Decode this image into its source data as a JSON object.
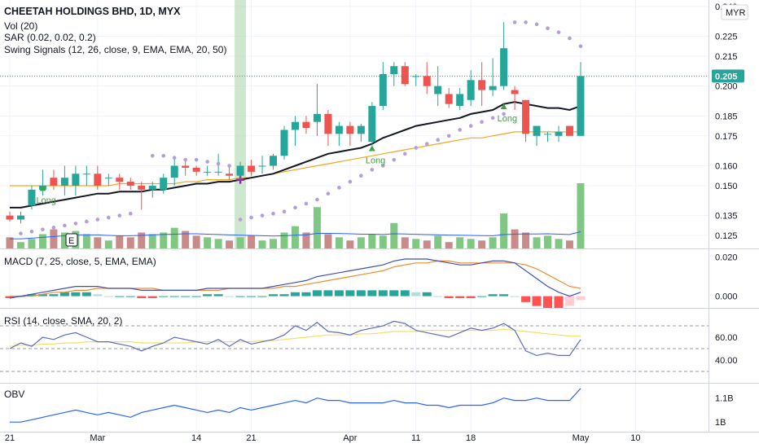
{
  "header": {
    "title": "CHEETAH HOLDINGS BHD, 1D, MYX",
    "currency": "MYR",
    "indicators": [
      "Vol (20)",
      "SAR (0.02, 0.02, 0.2)",
      "Swing Signals (12, 26, close, 9, EMA, EMA, 20, 50)"
    ]
  },
  "colors": {
    "up": "#26a69a",
    "down": "#ef5350",
    "vol_up": "#81c784",
    "vol_down": "#c98a8a",
    "ema_fast": "#131722",
    "ema_slow": "#f5a623",
    "sar": "#b39ddb",
    "signal": "#43a047",
    "macd_line": "#3f51b5",
    "macd_signal": "#ef8c2a",
    "rsi": "#5c6bc0",
    "rsi_ma": "#f2e06a",
    "obv": "#2962ff",
    "last_price_bg": "#26a69a"
  },
  "chart_data": {
    "type": "candlestick",
    "title": "CHEETAH HOLDINGS BHD, 1D, MYX",
    "price_axis_ticks": [
      "0.240",
      "0.225",
      "0.215",
      "0.205",
      "0.200",
      "0.185",
      "0.175",
      "0.160",
      "0.150",
      "0.135",
      "0.125"
    ],
    "price_axis_values": [
      0.24,
      0.225,
      0.215,
      0.205,
      0.2,
      0.185,
      0.175,
      0.16,
      0.15,
      0.135,
      0.125
    ],
    "last_price": "0.205",
    "x_axis_ticks": [
      "21",
      "Mar",
      "14",
      "21",
      "Apr",
      "11",
      "18",
      "May",
      "10"
    ],
    "x_axis_tick_index": [
      0,
      8,
      17,
      22,
      31,
      37,
      42,
      52,
      57
    ],
    "candles": [
      {
        "o": 0.135,
        "h": 0.137,
        "l": 0.132,
        "c": 0.133
      },
      {
        "o": 0.133,
        "h": 0.137,
        "l": 0.131,
        "c": 0.135
      },
      {
        "o": 0.14,
        "h": 0.15,
        "l": 0.138,
        "c": 0.148
      },
      {
        "o": 0.148,
        "h": 0.158,
        "l": 0.145,
        "c": 0.15
      },
      {
        "o": 0.154,
        "h": 0.158,
        "l": 0.148,
        "c": 0.15
      },
      {
        "o": 0.15,
        "h": 0.16,
        "l": 0.145,
        "c": 0.154
      },
      {
        "o": 0.15,
        "h": 0.16,
        "l": 0.145,
        "c": 0.156
      },
      {
        "o": 0.156,
        "h": 0.16,
        "l": 0.15,
        "c": 0.156
      },
      {
        "o": 0.156,
        "h": 0.16,
        "l": 0.148,
        "c": 0.15
      },
      {
        "o": 0.154,
        "h": 0.156,
        "l": 0.15,
        "c": 0.154
      },
      {
        "o": 0.154,
        "h": 0.156,
        "l": 0.148,
        "c": 0.152
      },
      {
        "o": 0.152,
        "h": 0.154,
        "l": 0.148,
        "c": 0.15
      },
      {
        "o": 0.15,
        "h": 0.152,
        "l": 0.138,
        "c": 0.148
      },
      {
        "o": 0.148,
        "h": 0.152,
        "l": 0.144,
        "c": 0.15
      },
      {
        "o": 0.148,
        "h": 0.156,
        "l": 0.146,
        "c": 0.154
      },
      {
        "o": 0.154,
        "h": 0.164,
        "l": 0.15,
        "c": 0.16
      },
      {
        "o": 0.16,
        "h": 0.163,
        "l": 0.155,
        "c": 0.159
      },
      {
        "o": 0.159,
        "h": 0.16,
        "l": 0.155,
        "c": 0.157
      },
      {
        "o": 0.157,
        "h": 0.16,
        "l": 0.155,
        "c": 0.157
      },
      {
        "o": 0.157,
        "h": 0.166,
        "l": 0.155,
        "c": 0.157
      },
      {
        "o": 0.156,
        "h": 0.16,
        "l": 0.153,
        "c": 0.155
      },
      {
        "o": 0.155,
        "h": 0.162,
        "l": 0.153,
        "c": 0.16
      },
      {
        "o": 0.16,
        "h": 0.163,
        "l": 0.155,
        "c": 0.157
      },
      {
        "o": 0.16,
        "h": 0.165,
        "l": 0.156,
        "c": 0.16
      },
      {
        "o": 0.16,
        "h": 0.166,
        "l": 0.158,
        "c": 0.165
      },
      {
        "o": 0.165,
        "h": 0.18,
        "l": 0.163,
        "c": 0.178
      },
      {
        "o": 0.178,
        "h": 0.185,
        "l": 0.17,
        "c": 0.182
      },
      {
        "o": 0.182,
        "h": 0.185,
        "l": 0.176,
        "c": 0.179
      },
      {
        "o": 0.182,
        "h": 0.201,
        "l": 0.175,
        "c": 0.186
      },
      {
        "o": 0.186,
        "h": 0.188,
        "l": 0.17,
        "c": 0.176
      },
      {
        "o": 0.176,
        "h": 0.182,
        "l": 0.17,
        "c": 0.18
      },
      {
        "o": 0.18,
        "h": 0.182,
        "l": 0.17,
        "c": 0.176
      },
      {
        "o": 0.176,
        "h": 0.181,
        "l": 0.172,
        "c": 0.18
      },
      {
        "o": 0.172,
        "h": 0.192,
        "l": 0.17,
        "c": 0.19
      },
      {
        "o": 0.19,
        "h": 0.212,
        "l": 0.188,
        "c": 0.206
      },
      {
        "o": 0.206,
        "h": 0.212,
        "l": 0.2,
        "c": 0.21
      },
      {
        "o": 0.21,
        "h": 0.212,
        "l": 0.2,
        "c": 0.201
      },
      {
        "o": 0.205,
        "h": 0.206,
        "l": 0.2,
        "c": 0.205
      },
      {
        "o": 0.205,
        "h": 0.212,
        "l": 0.196,
        "c": 0.2
      },
      {
        "o": 0.196,
        "h": 0.21,
        "l": 0.19,
        "c": 0.2
      },
      {
        "o": 0.196,
        "h": 0.199,
        "l": 0.189,
        "c": 0.191
      },
      {
        "o": 0.19,
        "h": 0.199,
        "l": 0.188,
        "c": 0.196
      },
      {
        "o": 0.193,
        "h": 0.208,
        "l": 0.19,
        "c": 0.203
      },
      {
        "o": 0.203,
        "h": 0.212,
        "l": 0.19,
        "c": 0.198
      },
      {
        "o": 0.198,
        "h": 0.214,
        "l": 0.195,
        "c": 0.2
      },
      {
        "o": 0.2,
        "h": 0.232,
        "l": 0.198,
        "c": 0.219
      },
      {
        "o": 0.198,
        "h": 0.2,
        "l": 0.188,
        "c": 0.196
      },
      {
        "o": 0.193,
        "h": 0.193,
        "l": 0.172,
        "c": 0.176
      },
      {
        "o": 0.175,
        "h": 0.18,
        "l": 0.17,
        "c": 0.18
      },
      {
        "o": 0.176,
        "h": 0.177,
        "l": 0.172,
        "c": 0.176
      },
      {
        "o": 0.175,
        "h": 0.18,
        "l": 0.172,
        "c": 0.177
      },
      {
        "o": 0.18,
        "h": 0.18,
        "l": 0.175,
        "c": 0.175
      },
      {
        "o": 0.175,
        "h": 0.212,
        "l": 0.175,
        "c": 0.205
      }
    ],
    "volume": [
      7,
      4,
      6,
      9,
      12,
      10,
      11,
      9,
      7,
      5,
      8,
      7,
      10,
      9,
      10,
      13,
      11,
      8,
      7,
      6,
      5,
      7,
      8,
      5,
      6,
      10,
      14,
      10,
      26,
      9,
      7,
      5,
      7,
      9,
      8,
      16,
      7,
      6,
      5,
      8,
      4,
      7,
      6,
      5,
      7,
      22,
      12,
      10,
      7,
      8,
      6,
      5,
      41
    ],
    "volume_ma": [
      6,
      6,
      6.5,
      7,
      7.5,
      8,
      8.5,
      8.5,
      8.5,
      8.2,
      8,
      8,
      8.2,
      8.5,
      8.8,
      9,
      9.2,
      9.2,
      9,
      8.8,
      8.5,
      8.3,
      8.2,
      8,
      7.8,
      8,
      8.3,
      8.5,
      9.5,
      9.5,
      9.4,
      9.2,
      9,
      9,
      8.8,
      9.2,
      9.1,
      8.9,
      8.7,
      8.6,
      8.4,
      8.3,
      8.2,
      8.1,
      8,
      8.7,
      9,
      9.1,
      9.1,
      9.2,
      9,
      8.8,
      10.5
    ],
    "ema_fast": [
      0.139,
      0.139,
      0.14,
      0.141,
      0.142,
      0.143,
      0.144,
      0.145,
      0.146,
      0.146,
      0.147,
      0.147,
      0.147,
      0.148,
      0.148,
      0.149,
      0.15,
      0.151,
      0.151,
      0.152,
      0.152,
      0.153,
      0.154,
      0.155,
      0.156,
      0.158,
      0.16,
      0.162,
      0.164,
      0.166,
      0.167,
      0.168,
      0.169,
      0.171,
      0.174,
      0.176,
      0.178,
      0.18,
      0.181,
      0.182,
      0.183,
      0.184,
      0.186,
      0.187,
      0.188,
      0.191,
      0.192,
      0.191,
      0.19,
      0.189,
      0.189,
      0.188,
      0.19
    ],
    "ema_slow": [
      0.15,
      0.15,
      0.15,
      0.15,
      0.15,
      0.15,
      0.15,
      0.15,
      0.15,
      0.15,
      0.151,
      0.151,
      0.151,
      0.151,
      0.151,
      0.151,
      0.152,
      0.152,
      0.153,
      0.153,
      0.153,
      0.154,
      0.154,
      0.155,
      0.156,
      0.157,
      0.158,
      0.159,
      0.16,
      0.161,
      0.162,
      0.163,
      0.164,
      0.165,
      0.166,
      0.167,
      0.168,
      0.169,
      0.17,
      0.171,
      0.172,
      0.173,
      0.174,
      0.174,
      0.175,
      0.176,
      0.177,
      0.177,
      0.177,
      0.177,
      0.177,
      0.177,
      0.177
    ],
    "sar": [
      {
        "i": 1,
        "v": 0.126
      },
      {
        "i": 2,
        "v": 0.127
      },
      {
        "i": 3,
        "v": 0.128
      },
      {
        "i": 4,
        "v": 0.129
      },
      {
        "i": 5,
        "v": 0.13
      },
      {
        "i": 6,
        "v": 0.131
      },
      {
        "i": 7,
        "v": 0.132
      },
      {
        "i": 8,
        "v": 0.133
      },
      {
        "i": 9,
        "v": 0.134
      },
      {
        "i": 10,
        "v": 0.135
      },
      {
        "i": 11,
        "v": 0.136
      },
      {
        "i": 13,
        "v": 0.165
      },
      {
        "i": 14,
        "v": 0.165
      },
      {
        "i": 15,
        "v": 0.164
      },
      {
        "i": 16,
        "v": 0.163
      },
      {
        "i": 17,
        "v": 0.163
      },
      {
        "i": 18,
        "v": 0.162
      },
      {
        "i": 19,
        "v": 0.161
      },
      {
        "i": 20,
        "v": 0.16
      },
      {
        "i": 21,
        "v": 0.133
      },
      {
        "i": 22,
        "v": 0.134
      },
      {
        "i": 23,
        "v": 0.135
      },
      {
        "i": 24,
        "v": 0.136
      },
      {
        "i": 25,
        "v": 0.137
      },
      {
        "i": 26,
        "v": 0.139
      },
      {
        "i": 27,
        "v": 0.141
      },
      {
        "i": 28,
        "v": 0.143
      },
      {
        "i": 29,
        "v": 0.146
      },
      {
        "i": 30,
        "v": 0.149
      },
      {
        "i": 31,
        "v": 0.152
      },
      {
        "i": 32,
        "v": 0.155
      },
      {
        "i": 33,
        "v": 0.158
      },
      {
        "i": 34,
        "v": 0.16
      },
      {
        "i": 35,
        "v": 0.163
      },
      {
        "i": 36,
        "v": 0.166
      },
      {
        "i": 37,
        "v": 0.169
      },
      {
        "i": 38,
        "v": 0.171
      },
      {
        "i": 39,
        "v": 0.173
      },
      {
        "i": 40,
        "v": 0.175
      },
      {
        "i": 41,
        "v": 0.178
      },
      {
        "i": 42,
        "v": 0.18
      },
      {
        "i": 43,
        "v": 0.182
      },
      {
        "i": 44,
        "v": 0.184
      },
      {
        "i": 45,
        "v": 0.186
      },
      {
        "i": 46,
        "v": 0.232
      },
      {
        "i": 47,
        "v": 0.232
      },
      {
        "i": 48,
        "v": 0.231
      },
      {
        "i": 49,
        "v": 0.229
      },
      {
        "i": 50,
        "v": 0.227
      },
      {
        "i": 51,
        "v": 0.224
      },
      {
        "i": 52,
        "v": 0.22
      }
    ],
    "long_signals": [
      {
        "i": 3,
        "v": 0.149,
        "label": "Long"
      },
      {
        "i": 33,
        "v": 0.169,
        "label": "Long"
      },
      {
        "i": 45,
        "v": 0.19,
        "label": "Long"
      }
    ],
    "highlight_bar_index": 21,
    "macd": {
      "ticks": [
        "0.020",
        "0.000"
      ],
      "tick_values": [
        0.02,
        0.0
      ],
      "range": [
        -0.006,
        0.024
      ],
      "macd_line": [
        -0.001,
        0.0,
        0.001,
        0.002,
        0.003,
        0.004,
        0.005,
        0.005,
        0.005,
        0.004,
        0.004,
        0.004,
        0.003,
        0.003,
        0.003,
        0.003,
        0.003,
        0.003,
        0.004,
        0.004,
        0.004,
        0.004,
        0.004,
        0.004,
        0.005,
        0.006,
        0.007,
        0.008,
        0.01,
        0.011,
        0.012,
        0.013,
        0.014,
        0.015,
        0.016,
        0.018,
        0.019,
        0.019,
        0.019,
        0.018,
        0.017,
        0.016,
        0.016,
        0.017,
        0.018,
        0.018,
        0.017,
        0.013,
        0.009,
        0.005,
        0.002,
        0.0,
        0.002
      ],
      "signal_line": [
        0.0,
        0.0,
        0.0,
        0.001,
        0.002,
        0.002,
        0.003,
        0.003,
        0.004,
        0.004,
        0.004,
        0.004,
        0.004,
        0.004,
        0.003,
        0.003,
        0.003,
        0.003,
        0.003,
        0.003,
        0.004,
        0.004,
        0.004,
        0.004,
        0.004,
        0.005,
        0.005,
        0.006,
        0.007,
        0.008,
        0.009,
        0.01,
        0.011,
        0.012,
        0.013,
        0.015,
        0.016,
        0.017,
        0.017,
        0.018,
        0.018,
        0.017,
        0.017,
        0.017,
        0.017,
        0.017,
        0.017,
        0.016,
        0.014,
        0.011,
        0.008,
        0.005,
        0.004
      ],
      "histogram": [
        -0.001,
        0.0,
        0.001,
        0.001,
        0.001,
        0.002,
        0.002,
        0.002,
        0.001,
        0.0,
        0.0,
        0.0,
        -0.001,
        -0.001,
        0.0,
        0.0,
        0.0,
        0.0,
        0.001,
        0.001,
        0.0,
        0.0,
        0.0,
        0.0,
        0.001,
        0.001,
        0.002,
        0.002,
        0.003,
        0.003,
        0.003,
        0.003,
        0.003,
        0.003,
        0.003,
        0.003,
        0.003,
        0.002,
        0.002,
        0.0,
        -0.001,
        -0.001,
        -0.001,
        0.0,
        0.001,
        0.001,
        0.0,
        -0.003,
        -0.005,
        -0.006,
        -0.006,
        -0.005,
        -0.002
      ]
    },
    "rsi": {
      "ticks": [
        "60.00",
        "40.00"
      ],
      "tick_values": [
        60,
        40
      ],
      "range": [
        20,
        85
      ],
      "bands": [
        70,
        50,
        30
      ],
      "rsi_line": [
        50,
        55,
        52,
        60,
        58,
        62,
        64,
        60,
        56,
        56,
        54,
        52,
        48,
        52,
        55,
        60,
        58,
        56,
        54,
        58,
        52,
        58,
        54,
        56,
        58,
        62,
        70,
        66,
        73,
        65,
        64,
        62,
        66,
        68,
        70,
        74,
        72,
        66,
        64,
        62,
        60,
        64,
        68,
        66,
        68,
        72,
        66,
        48,
        44,
        46,
        44,
        44,
        58
      ],
      "rsi_ma": [
        52,
        53,
        53,
        54,
        54,
        55,
        55,
        56,
        56,
        56,
        56,
        56,
        55,
        55,
        55,
        55,
        55,
        56,
        56,
        56,
        56,
        56,
        56,
        57,
        57,
        58,
        59,
        60,
        61,
        62,
        62,
        62,
        63,
        63,
        64,
        65,
        65,
        65,
        66,
        66,
        66,
        66,
        66,
        66,
        66,
        67,
        66,
        65,
        64,
        63,
        62,
        61,
        61
      ]
    },
    "obv": {
      "ticks": [
        "1.1B",
        "1B"
      ],
      "tick_values": [
        1.1,
        1.0
      ],
      "range": [
        0.96,
        1.16
      ],
      "obv_line": [
        1.0,
        1.0,
        1.01,
        1.02,
        1.03,
        1.04,
        1.05,
        1.04,
        1.03,
        1.04,
        1.03,
        1.02,
        1.04,
        1.05,
        1.06,
        1.07,
        1.06,
        1.05,
        1.04,
        1.05,
        1.04,
        1.06,
        1.05,
        1.06,
        1.07,
        1.08,
        1.09,
        1.08,
        1.1,
        1.09,
        1.09,
        1.08,
        1.08,
        1.08,
        1.08,
        1.09,
        1.08,
        1.08,
        1.07,
        1.07,
        1.06,
        1.07,
        1.07,
        1.07,
        1.08,
        1.1,
        1.09,
        1.09,
        1.1,
        1.09,
        1.09,
        1.09,
        1.14
      ]
    }
  },
  "panes": {
    "macd_label": "MACD (7, 25, close, 5, EMA, EMA)",
    "rsi_label": "RSI (14, close, SMA, 20, 2)",
    "obv_label": "OBV"
  },
  "earnings_marker": "E"
}
